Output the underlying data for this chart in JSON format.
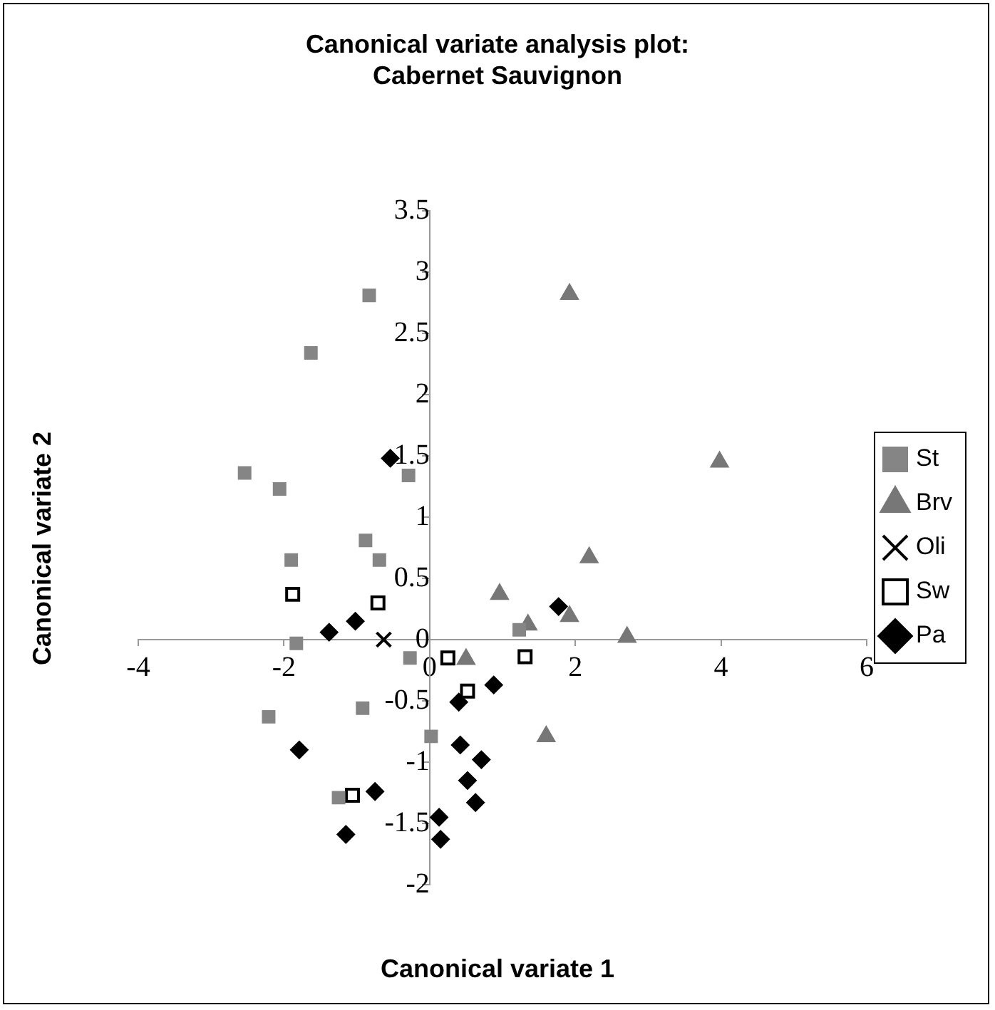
{
  "chart_data": {
    "type": "scatter",
    "title": "Canonical variate analysis plot:\nCabernet Sauvignon",
    "xlabel": "Canonical variate 1",
    "ylabel": "Canonical variate 2",
    "xlim": [
      -4,
      6
    ],
    "xticks": [
      -4,
      -2,
      0,
      2,
      4,
      6
    ],
    "ylim": [
      -2,
      3.5
    ],
    "yticks": [
      -2,
      -1.5,
      -1,
      -0.5,
      0,
      0.5,
      1,
      1.5,
      2,
      2.5,
      3,
      3.5
    ],
    "grid": false,
    "legend": "right",
    "series": [
      {
        "name": "St",
        "color": "#858585",
        "marker": "square",
        "x": [
          -0.83,
          -1.63,
          -2.54,
          -2.06,
          -0.29,
          -0.88,
          -0.69,
          -1.9,
          -1.83,
          -0.27,
          -0.92,
          -2.21,
          0.02,
          -1.25,
          1.23
        ],
        "values": [
          2.81,
          2.34,
          1.36,
          1.23,
          1.34,
          0.81,
          0.65,
          0.65,
          -0.03,
          -0.15,
          -0.56,
          -0.63,
          -0.79,
          -1.29,
          0.08
        ]
      },
      {
        "name": "Brv",
        "color": "#777777",
        "marker": "triangle",
        "x": [
          1.92,
          3.98,
          2.19,
          0.96,
          1.92,
          1.35,
          2.71,
          0.5,
          1.6
        ],
        "values": [
          2.82,
          1.45,
          0.67,
          0.37,
          0.19,
          0.12,
          0.02,
          -0.16,
          -0.79
        ]
      },
      {
        "name": "Oli",
        "color": "#000000",
        "marker": "cross",
        "x": [
          -0.63
        ],
        "values": [
          0.0
        ]
      },
      {
        "name": "Sw",
        "color": "#ffffff",
        "marker": "square",
        "x": [
          -1.88,
          -0.71,
          0.25,
          0.52,
          -1.06,
          1.31
        ],
        "values": [
          0.37,
          0.3,
          -0.15,
          -0.42,
          -1.27,
          -0.14
        ]
      },
      {
        "name": "Pa",
        "color": "#000000",
        "marker": "diamond",
        "x": [
          -0.54,
          1.77,
          -1.38,
          -1.02,
          0.88,
          0.4,
          -1.79,
          0.42,
          0.71,
          0.52,
          0.63,
          -0.75,
          -1.15,
          0.13,
          0.15
        ],
        "values": [
          1.48,
          0.27,
          0.06,
          0.15,
          -0.37,
          -0.51,
          -0.9,
          -0.86,
          -0.98,
          -1.15,
          -1.33,
          -1.24,
          -1.59,
          -1.45,
          -1.63
        ]
      }
    ]
  }
}
